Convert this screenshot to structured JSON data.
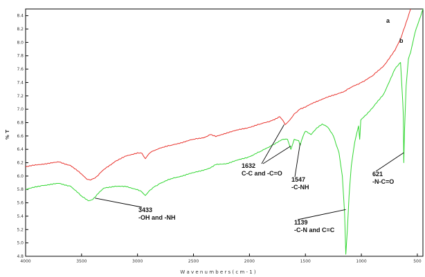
{
  "chart_data": {
    "type": "line",
    "title": "",
    "xlabel": "W a v e n u m b e r s  ( c m - 1 )",
    "ylabel": "% T",
    "xlim": [
      4000,
      450
    ],
    "ylim": [
      48,
      85
    ],
    "x_ticks": [
      4000,
      3500,
      3000,
      2500,
      2000,
      1500,
      1000,
      500
    ],
    "y_ticks": [
      48,
      50,
      52,
      54,
      56,
      58,
      60,
      62,
      64,
      66,
      68,
      70,
      72,
      74,
      76,
      78,
      80,
      82,
      84
    ],
    "grid": false,
    "colors": {
      "a": "#e8302a",
      "b": "#2fd62f"
    },
    "series": [
      {
        "name": "a",
        "x": [
          4000,
          3850,
          3700,
          3600,
          3500,
          3450,
          3420,
          3380,
          3300,
          3200,
          3100,
          3000,
          2960,
          2930,
          2900,
          2870,
          2800,
          2700,
          2500,
          2400,
          2350,
          2300,
          2200,
          2100,
          2000,
          1900,
          1800,
          1730,
          1700,
          1680,
          1650,
          1630,
          1600,
          1550,
          1500,
          1450,
          1400,
          1300,
          1200,
          1150,
          1100,
          1050,
          1000,
          900,
          800,
          700,
          650,
          600,
          560
        ],
        "y": [
          61.4,
          61.8,
          62.1,
          61.6,
          60.3,
          59.5,
          59.4,
          59.7,
          61.0,
          62.2,
          63.0,
          63.5,
          63.4,
          62.6,
          63.3,
          63.7,
          64.2,
          64.6,
          65.5,
          65.8,
          66.2,
          65.9,
          66.5,
          66.9,
          67.3,
          67.8,
          68.3,
          68.9,
          68.3,
          67.7,
          68.2,
          68.6,
          69.3,
          70.0,
          70.3,
          70.8,
          71.2,
          71.8,
          72.4,
          72.7,
          73.2,
          73.6,
          74.0,
          75.0,
          76.5,
          78.8,
          80.5,
          83.0,
          85.0
        ]
      },
      {
        "name": "b",
        "x": [
          4000,
          3850,
          3700,
          3600,
          3500,
          3440,
          3400,
          3350,
          3300,
          3200,
          3100,
          3000,
          2960,
          2930,
          2900,
          2850,
          2800,
          2700,
          2500,
          2350,
          2300,
          2200,
          2000,
          1900,
          1800,
          1700,
          1660,
          1630,
          1600,
          1560,
          1547,
          1520,
          1500,
          1450,
          1400,
          1350,
          1300,
          1250,
          1200,
          1170,
          1150,
          1139,
          1125,
          1110,
          1090,
          1060,
          1040,
          1025,
          1015,
          1005,
          980,
          900,
          800,
          700,
          650,
          640,
          630,
          625,
          621,
          615,
          600,
          580,
          560,
          540,
          520,
          500,
          480,
          460,
          450
        ],
        "y": [
          58.0,
          58.6,
          58.9,
          58.5,
          57.0,
          56.3,
          56.5,
          57.4,
          58.2,
          58.5,
          58.4,
          58.0,
          57.6,
          57.1,
          57.7,
          58.4,
          58.9,
          59.6,
          60.5,
          61.2,
          61.7,
          61.9,
          62.9,
          63.7,
          64.6,
          65.5,
          65.5,
          64.0,
          65.5,
          65.3,
          64.6,
          66.0,
          66.7,
          66.2,
          67.2,
          67.8,
          67.3,
          66.0,
          63.5,
          60.0,
          54.5,
          48.3,
          52.0,
          57.0,
          61.5,
          65.0,
          66.5,
          67.5,
          65.5,
          68.4,
          68.8,
          70.2,
          72.3,
          76.0,
          77.0,
          74.0,
          71.0,
          69.0,
          62.0,
          66.5,
          73.5,
          77.5,
          78.5,
          80.0,
          81.5,
          82.5,
          83.5,
          84.5,
          85.0
        ]
      }
    ],
    "series_labels": [
      "a",
      "b"
    ],
    "annotations": [
      {
        "lines": [
          "3433",
          "-OH and -NH"
        ],
        "target_x": 3380,
        "target_y": 56.7
      },
      {
        "lines": [
          "1632",
          "C-C and -C=O"
        ],
        "target_x": 1630,
        "target_y": 64.5
      },
      {
        "lines": [
          "1547",
          "-C-NH"
        ],
        "target_x": 1547,
        "target_y": 64.9
      },
      {
        "lines": [
          "1139",
          "-C-N and C=C"
        ],
        "target_x": 1139,
        "target_y": 55.0
      },
      {
        "lines": [
          "621",
          "-N-C=O"
        ],
        "target_x": 621,
        "target_y": 63.5
      }
    ]
  }
}
